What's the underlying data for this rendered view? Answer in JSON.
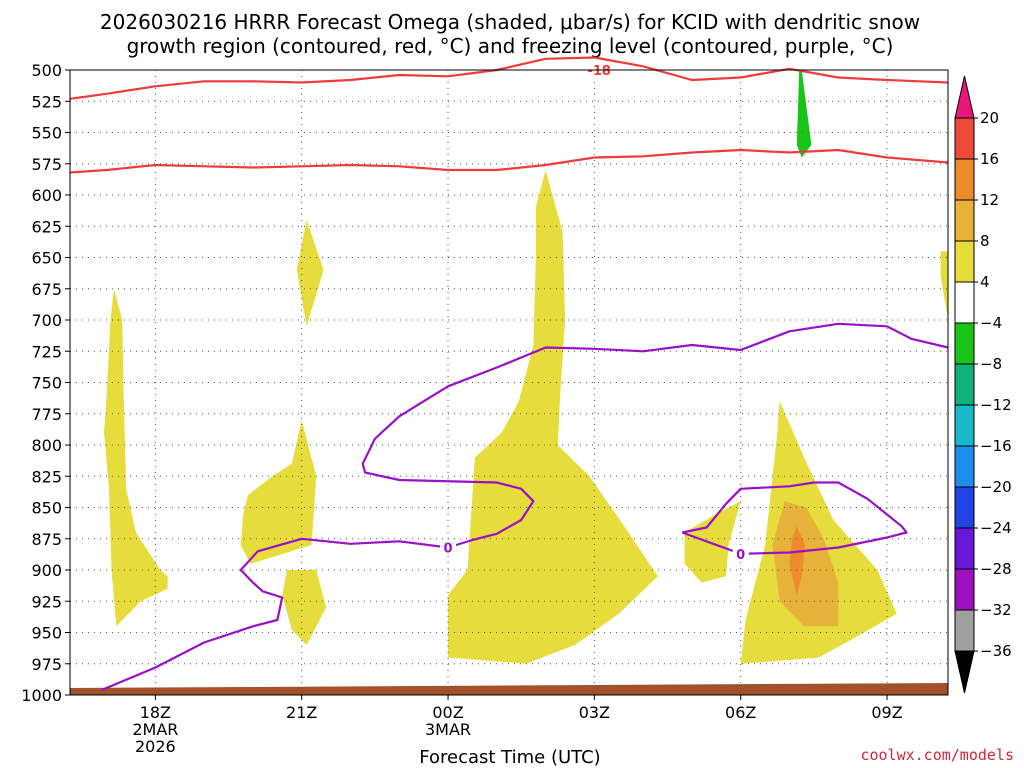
{
  "title_line1": "2026030216 HRRR Forecast Omega (shaded, μbar/s) for KCID with dendritic snow",
  "title_line2": "growth region (contoured, red, °C) and freezing level (contoured, purple, °C)",
  "credit": "coolwx.com/models",
  "chart_data": {
    "type": "time-height cross section",
    "title": "2026030216 HRRR Forecast Omega (shaded, μbar/s) for KCID with dendritic snow growth region (contoured, red, °C) and freezing level (contoured, purple, °C)",
    "xlabel": "Forecast Time (UTC)",
    "ylabel": "",
    "x_units": "forecast hours from 2026030216",
    "xlim": [
      0.25,
      18.25
    ],
    "y_units": "pressure (mb)",
    "ylim": [
      1000,
      500
    ],
    "grid": true,
    "y_ticks": [
      500,
      525,
      550,
      575,
      600,
      625,
      650,
      675,
      700,
      725,
      750,
      775,
      800,
      825,
      850,
      875,
      900,
      925,
      950,
      975,
      1000
    ],
    "x_ticks": [
      {
        "hour": 2,
        "lines": [
          "18Z",
          "2MAR",
          "2026"
        ]
      },
      {
        "hour": 5,
        "lines": [
          "21Z"
        ]
      },
      {
        "hour": 8,
        "lines": [
          "00Z",
          "3MAR"
        ]
      },
      {
        "hour": 11,
        "lines": [
          "03Z"
        ]
      },
      {
        "hour": 14,
        "lines": [
          "06Z"
        ]
      },
      {
        "hour": 17,
        "lines": [
          "09Z"
        ]
      }
    ],
    "colorbar": {
      "levels": [
        "20",
        "16",
        "12",
        "8",
        "4",
        "−4",
        "−8",
        "−12",
        "−16",
        "−20",
        "−24",
        "−28",
        "−32",
        "−36"
      ],
      "colors": [
        "#e8187a",
        "#ee4a3a",
        "#ec8a2c",
        "#e6b23a",
        "#e6dc3c",
        "#ffffff",
        "#18c418",
        "#12b07a",
        "#18b8c8",
        "#1c8ef0",
        "#2244e4",
        "#6a18d8",
        "#a010c0",
        "#a0a0a0",
        "#000000"
      ]
    },
    "ground_color": "#a0522d",
    "omega_regions": [
      {
        "color": "#e6dc3c",
        "points": [
          [
            1.15,
            675
          ],
          [
            1.32,
            700
          ],
          [
            1.35,
            760
          ],
          [
            1.4,
            835
          ],
          [
            1.6,
            870
          ],
          [
            2.1,
            900
          ],
          [
            2.25,
            905
          ],
          [
            2.25,
            915
          ],
          [
            1.7,
            925
          ],
          [
            1.2,
            945
          ],
          [
            1.1,
            900
          ],
          [
            1.05,
            835
          ],
          [
            0.95,
            790
          ],
          [
            1.0,
            760
          ],
          [
            1.08,
            700
          ]
        ]
      },
      {
        "color": "#e6dc3c",
        "points": [
          [
            5.1,
            620
          ],
          [
            5.45,
            660
          ],
          [
            5.1,
            705
          ],
          [
            4.9,
            660
          ]
        ]
      },
      {
        "color": "#e6dc3c",
        "points": [
          [
            3.9,
            840
          ],
          [
            4.4,
            825
          ],
          [
            4.8,
            815
          ],
          [
            5.0,
            780
          ],
          [
            5.3,
            825
          ],
          [
            5.2,
            880
          ],
          [
            3.95,
            895
          ],
          [
            3.75,
            880
          ],
          [
            3.8,
            855
          ]
        ]
      },
      {
        "color": "#e6dc3c",
        "points": [
          [
            4.7,
            900
          ],
          [
            5.3,
            900
          ],
          [
            5.5,
            930
          ],
          [
            5.1,
            960
          ],
          [
            4.8,
            948
          ],
          [
            4.6,
            920
          ]
        ]
      },
      {
        "color": "#e6dc3c",
        "points": [
          [
            10.0,
            580
          ],
          [
            10.35,
            630
          ],
          [
            10.4,
            700
          ],
          [
            10.3,
            760
          ],
          [
            10.25,
            800
          ],
          [
            10.9,
            825
          ],
          [
            11.7,
            870
          ],
          [
            12.3,
            905
          ],
          [
            11.5,
            935
          ],
          [
            10.6,
            960
          ],
          [
            9.6,
            975
          ],
          [
            8.0,
            970
          ],
          [
            8.0,
            920
          ],
          [
            8.4,
            900
          ],
          [
            8.55,
            810
          ],
          [
            9.1,
            790
          ],
          [
            9.45,
            765
          ],
          [
            9.75,
            720
          ],
          [
            9.8,
            650
          ],
          [
            9.8,
            610
          ]
        ]
      },
      {
        "color": "#e6dc3c",
        "points": [
          [
            12.85,
            870
          ],
          [
            13.5,
            855
          ],
          [
            14.0,
            845
          ],
          [
            13.75,
            880
          ],
          [
            13.7,
            905
          ],
          [
            13.2,
            910
          ],
          [
            12.85,
            895
          ]
        ]
      },
      {
        "color": "#e6dc3c",
        "points": [
          [
            14.8,
            765
          ],
          [
            15.3,
            810
          ],
          [
            15.9,
            860
          ],
          [
            16.8,
            900
          ],
          [
            17.2,
            935
          ],
          [
            16.3,
            955
          ],
          [
            15.6,
            970
          ],
          [
            14.0,
            975
          ],
          [
            14.1,
            940
          ],
          [
            14.5,
            880
          ],
          [
            14.75,
            790
          ]
        ]
      },
      {
        "color": "#e6dc3c",
        "points": [
          [
            18.1,
            645
          ],
          [
            18.25,
            645
          ],
          [
            18.25,
            700
          ],
          [
            18.1,
            665
          ]
        ]
      },
      {
        "color": "#e6b23a",
        "points": [
          [
            14.9,
            845
          ],
          [
            15.35,
            850
          ],
          [
            15.7,
            875
          ],
          [
            16.0,
            910
          ],
          [
            16.0,
            945
          ],
          [
            15.3,
            945
          ],
          [
            14.8,
            925
          ],
          [
            14.65,
            880
          ]
        ]
      },
      {
        "color": "#ec8a2c",
        "points": [
          [
            15.15,
            865
          ],
          [
            15.32,
            880
          ],
          [
            15.25,
            905
          ],
          [
            15.15,
            920
          ],
          [
            15.0,
            895
          ],
          [
            15.05,
            875
          ]
        ]
      },
      {
        "color": "#18c418",
        "points": [
          [
            15.25,
            500
          ],
          [
            15.45,
            560
          ],
          [
            15.25,
            570
          ],
          [
            15.15,
            560
          ],
          [
            15.2,
            500
          ]
        ]
      }
    ],
    "contours": [
      {
        "name": "dendritic snow growth region (-18 °C)",
        "color": "#ee3b3b",
        "label": "-18",
        "label_at": [
          11.1,
          500
        ],
        "points": [
          [
            0.25,
            523
          ],
          [
            1.0,
            519
          ],
          [
            2.0,
            513
          ],
          [
            3.0,
            509
          ],
          [
            4.0,
            509
          ],
          [
            5.0,
            510
          ],
          [
            6.0,
            508
          ],
          [
            7.0,
            504
          ],
          [
            8.0,
            505
          ],
          [
            9.0,
            500
          ],
          [
            10.0,
            491
          ],
          [
            11.0,
            490
          ],
          [
            12.0,
            497
          ],
          [
            13.0,
            508
          ],
          [
            14.0,
            506
          ],
          [
            15.0,
            499
          ],
          [
            16.0,
            506
          ],
          [
            17.0,
            508
          ],
          [
            18.25,
            510
          ]
        ]
      },
      {
        "name": "dendritic snow growth region (-12 °C)",
        "color": "#ee3b3b",
        "points": [
          [
            0.25,
            582
          ],
          [
            1.0,
            580
          ],
          [
            2.0,
            576
          ],
          [
            3.0,
            577
          ],
          [
            4.0,
            578
          ],
          [
            5.0,
            577
          ],
          [
            6.0,
            576
          ],
          [
            7.0,
            577
          ],
          [
            8.0,
            580
          ],
          [
            9.0,
            580
          ],
          [
            10.0,
            576
          ],
          [
            11.0,
            570
          ],
          [
            12.0,
            569
          ],
          [
            13.0,
            566
          ],
          [
            14.0,
            564
          ],
          [
            15.0,
            566
          ],
          [
            16.0,
            564
          ],
          [
            17.0,
            570
          ],
          [
            18.25,
            574
          ]
        ]
      },
      {
        "name": "freezing level (0 °C)",
        "color": "#9a10c8",
        "label": "0",
        "label_at": [
          8.0,
          882
        ],
        "points": [
          [
            0.9,
            996
          ],
          [
            2.0,
            978
          ],
          [
            3.0,
            958
          ],
          [
            4.0,
            945
          ],
          [
            4.5,
            940
          ],
          [
            4.6,
            922
          ],
          [
            4.2,
            917
          ],
          [
            4.0,
            910
          ],
          [
            3.75,
            900
          ],
          [
            4.1,
            885
          ],
          [
            5.0,
            875
          ],
          [
            6.0,
            879
          ],
          [
            7.0,
            877
          ],
          [
            8.0,
            882
          ],
          [
            8.5,
            876
          ],
          [
            9.0,
            871
          ],
          [
            9.5,
            860
          ],
          [
            9.75,
            845
          ],
          [
            9.5,
            835
          ],
          [
            9.0,
            830
          ],
          [
            7.0,
            828
          ],
          [
            6.3,
            822
          ],
          [
            6.25,
            815
          ],
          [
            6.5,
            795
          ],
          [
            7.0,
            777
          ],
          [
            8.0,
            753
          ],
          [
            9.0,
            738
          ],
          [
            10.0,
            722
          ],
          [
            11.0,
            723
          ],
          [
            12.0,
            725
          ],
          [
            13.0,
            720
          ],
          [
            14.0,
            724
          ],
          [
            15.0,
            709
          ],
          [
            16.0,
            703
          ],
          [
            17.0,
            705
          ],
          [
            17.5,
            715
          ],
          [
            18.25,
            722
          ]
        ]
      },
      {
        "name": "freezing level (0 °C)",
        "color": "#9a10c8",
        "label": "0",
        "label_at": [
          14.0,
          887
        ],
        "points": [
          [
            12.8,
            870
          ],
          [
            14.0,
            887
          ],
          [
            15.0,
            886
          ],
          [
            16.0,
            882
          ],
          [
            17.0,
            874
          ],
          [
            17.4,
            870
          ],
          [
            17.3,
            865
          ],
          [
            16.6,
            843
          ],
          [
            16.0,
            830
          ],
          [
            15.5,
            830
          ],
          [
            15.0,
            833
          ],
          [
            14.0,
            835
          ],
          [
            13.7,
            847
          ],
          [
            13.3,
            866
          ],
          [
            12.8,
            870
          ]
        ]
      }
    ]
  }
}
